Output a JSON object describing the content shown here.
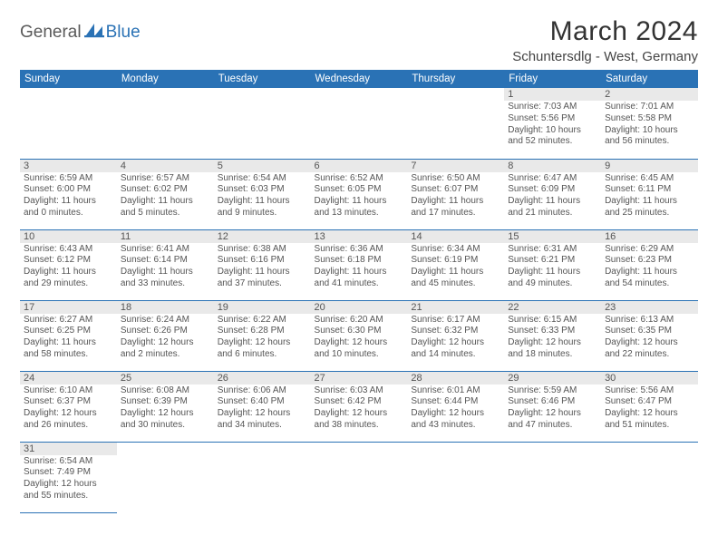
{
  "logo": {
    "part1": "General",
    "part2": "Blue"
  },
  "title": "March 2024",
  "location": "Schuntersdlg - West, Germany",
  "day_headers": [
    "Sunday",
    "Monday",
    "Tuesday",
    "Wednesday",
    "Thursday",
    "Friday",
    "Saturday"
  ],
  "colors": {
    "header_bg": "#2a72b5",
    "header_fg": "#ffffff",
    "date_bar_bg": "#e9e9e9",
    "text": "#555555",
    "rule": "#2a72b5"
  },
  "weeks": [
    [
      {
        "date": "",
        "sunrise": "",
        "sunset": "",
        "daylight": ""
      },
      {
        "date": "",
        "sunrise": "",
        "sunset": "",
        "daylight": ""
      },
      {
        "date": "",
        "sunrise": "",
        "sunset": "",
        "daylight": ""
      },
      {
        "date": "",
        "sunrise": "",
        "sunset": "",
        "daylight": ""
      },
      {
        "date": "",
        "sunrise": "",
        "sunset": "",
        "daylight": ""
      },
      {
        "date": "1",
        "sunrise": "Sunrise: 7:03 AM",
        "sunset": "Sunset: 5:56 PM",
        "daylight": "Daylight: 10 hours and 52 minutes."
      },
      {
        "date": "2",
        "sunrise": "Sunrise: 7:01 AM",
        "sunset": "Sunset: 5:58 PM",
        "daylight": "Daylight: 10 hours and 56 minutes."
      }
    ],
    [
      {
        "date": "3",
        "sunrise": "Sunrise: 6:59 AM",
        "sunset": "Sunset: 6:00 PM",
        "daylight": "Daylight: 11 hours and 0 minutes."
      },
      {
        "date": "4",
        "sunrise": "Sunrise: 6:57 AM",
        "sunset": "Sunset: 6:02 PM",
        "daylight": "Daylight: 11 hours and 5 minutes."
      },
      {
        "date": "5",
        "sunrise": "Sunrise: 6:54 AM",
        "sunset": "Sunset: 6:03 PM",
        "daylight": "Daylight: 11 hours and 9 minutes."
      },
      {
        "date": "6",
        "sunrise": "Sunrise: 6:52 AM",
        "sunset": "Sunset: 6:05 PM",
        "daylight": "Daylight: 11 hours and 13 minutes."
      },
      {
        "date": "7",
        "sunrise": "Sunrise: 6:50 AM",
        "sunset": "Sunset: 6:07 PM",
        "daylight": "Daylight: 11 hours and 17 minutes."
      },
      {
        "date": "8",
        "sunrise": "Sunrise: 6:47 AM",
        "sunset": "Sunset: 6:09 PM",
        "daylight": "Daylight: 11 hours and 21 minutes."
      },
      {
        "date": "9",
        "sunrise": "Sunrise: 6:45 AM",
        "sunset": "Sunset: 6:11 PM",
        "daylight": "Daylight: 11 hours and 25 minutes."
      }
    ],
    [
      {
        "date": "10",
        "sunrise": "Sunrise: 6:43 AM",
        "sunset": "Sunset: 6:12 PM",
        "daylight": "Daylight: 11 hours and 29 minutes."
      },
      {
        "date": "11",
        "sunrise": "Sunrise: 6:41 AM",
        "sunset": "Sunset: 6:14 PM",
        "daylight": "Daylight: 11 hours and 33 minutes."
      },
      {
        "date": "12",
        "sunrise": "Sunrise: 6:38 AM",
        "sunset": "Sunset: 6:16 PM",
        "daylight": "Daylight: 11 hours and 37 minutes."
      },
      {
        "date": "13",
        "sunrise": "Sunrise: 6:36 AM",
        "sunset": "Sunset: 6:18 PM",
        "daylight": "Daylight: 11 hours and 41 minutes."
      },
      {
        "date": "14",
        "sunrise": "Sunrise: 6:34 AM",
        "sunset": "Sunset: 6:19 PM",
        "daylight": "Daylight: 11 hours and 45 minutes."
      },
      {
        "date": "15",
        "sunrise": "Sunrise: 6:31 AM",
        "sunset": "Sunset: 6:21 PM",
        "daylight": "Daylight: 11 hours and 49 minutes."
      },
      {
        "date": "16",
        "sunrise": "Sunrise: 6:29 AM",
        "sunset": "Sunset: 6:23 PM",
        "daylight": "Daylight: 11 hours and 54 minutes."
      }
    ],
    [
      {
        "date": "17",
        "sunrise": "Sunrise: 6:27 AM",
        "sunset": "Sunset: 6:25 PM",
        "daylight": "Daylight: 11 hours and 58 minutes."
      },
      {
        "date": "18",
        "sunrise": "Sunrise: 6:24 AM",
        "sunset": "Sunset: 6:26 PM",
        "daylight": "Daylight: 12 hours and 2 minutes."
      },
      {
        "date": "19",
        "sunrise": "Sunrise: 6:22 AM",
        "sunset": "Sunset: 6:28 PM",
        "daylight": "Daylight: 12 hours and 6 minutes."
      },
      {
        "date": "20",
        "sunrise": "Sunrise: 6:20 AM",
        "sunset": "Sunset: 6:30 PM",
        "daylight": "Daylight: 12 hours and 10 minutes."
      },
      {
        "date": "21",
        "sunrise": "Sunrise: 6:17 AM",
        "sunset": "Sunset: 6:32 PM",
        "daylight": "Daylight: 12 hours and 14 minutes."
      },
      {
        "date": "22",
        "sunrise": "Sunrise: 6:15 AM",
        "sunset": "Sunset: 6:33 PM",
        "daylight": "Daylight: 12 hours and 18 minutes."
      },
      {
        "date": "23",
        "sunrise": "Sunrise: 6:13 AM",
        "sunset": "Sunset: 6:35 PM",
        "daylight": "Daylight: 12 hours and 22 minutes."
      }
    ],
    [
      {
        "date": "24",
        "sunrise": "Sunrise: 6:10 AM",
        "sunset": "Sunset: 6:37 PM",
        "daylight": "Daylight: 12 hours and 26 minutes."
      },
      {
        "date": "25",
        "sunrise": "Sunrise: 6:08 AM",
        "sunset": "Sunset: 6:39 PM",
        "daylight": "Daylight: 12 hours and 30 minutes."
      },
      {
        "date": "26",
        "sunrise": "Sunrise: 6:06 AM",
        "sunset": "Sunset: 6:40 PM",
        "daylight": "Daylight: 12 hours and 34 minutes."
      },
      {
        "date": "27",
        "sunrise": "Sunrise: 6:03 AM",
        "sunset": "Sunset: 6:42 PM",
        "daylight": "Daylight: 12 hours and 38 minutes."
      },
      {
        "date": "28",
        "sunrise": "Sunrise: 6:01 AM",
        "sunset": "Sunset: 6:44 PM",
        "daylight": "Daylight: 12 hours and 43 minutes."
      },
      {
        "date": "29",
        "sunrise": "Sunrise: 5:59 AM",
        "sunset": "Sunset: 6:46 PM",
        "daylight": "Daylight: 12 hours and 47 minutes."
      },
      {
        "date": "30",
        "sunrise": "Sunrise: 5:56 AM",
        "sunset": "Sunset: 6:47 PM",
        "daylight": "Daylight: 12 hours and 51 minutes."
      }
    ],
    [
      {
        "date": "31",
        "sunrise": "Sunrise: 6:54 AM",
        "sunset": "Sunset: 7:49 PM",
        "daylight": "Daylight: 12 hours and 55 minutes."
      },
      {
        "date": "",
        "sunrise": "",
        "sunset": "",
        "daylight": ""
      },
      {
        "date": "",
        "sunrise": "",
        "sunset": "",
        "daylight": ""
      },
      {
        "date": "",
        "sunrise": "",
        "sunset": "",
        "daylight": ""
      },
      {
        "date": "",
        "sunrise": "",
        "sunset": "",
        "daylight": ""
      },
      {
        "date": "",
        "sunrise": "",
        "sunset": "",
        "daylight": ""
      },
      {
        "date": "",
        "sunrise": "",
        "sunset": "",
        "daylight": ""
      }
    ]
  ]
}
